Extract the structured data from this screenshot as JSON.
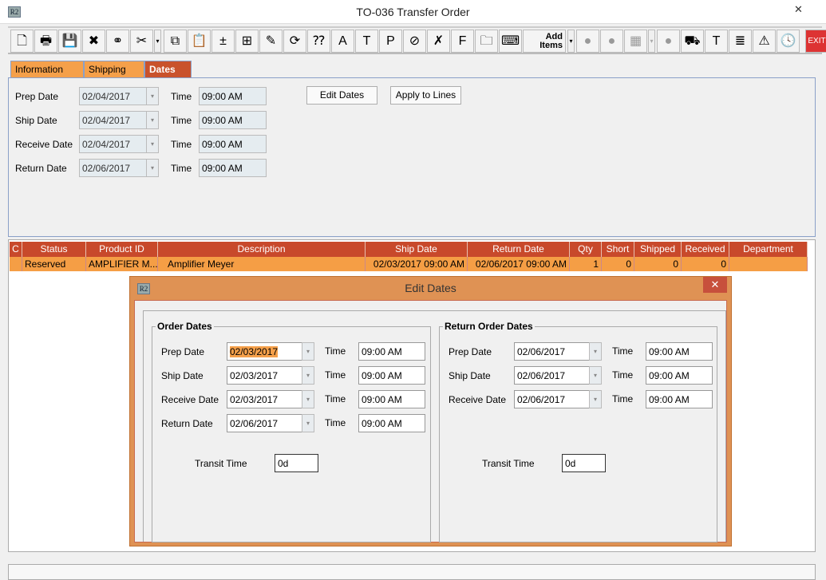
{
  "window": {
    "title": "TO-036 Transfer Order",
    "app_icon": "R2",
    "close": "✕"
  },
  "toolbar": {
    "items": [
      {
        "icon": "new-document-icon",
        "glyph": "🗋"
      },
      {
        "icon": "print-icon",
        "glyph": "🖶"
      },
      {
        "icon": "save-icon",
        "glyph": "💾"
      },
      {
        "icon": "delete-icon",
        "glyph": "✖"
      },
      {
        "icon": "binoculars-icon",
        "glyph": "⚭"
      },
      {
        "icon": "cut-icon",
        "glyph": "✂"
      },
      {
        "icon": "copy-icon",
        "glyph": "⧉"
      },
      {
        "icon": "paste-icon",
        "glyph": "📋"
      },
      {
        "icon": "add-remove-icon",
        "glyph": "±"
      },
      {
        "icon": "add-line-icon",
        "glyph": "⊞"
      },
      {
        "icon": "edit-notes-icon",
        "glyph": "✎"
      },
      {
        "icon": "refresh-icon",
        "glyph": "⟳"
      },
      {
        "icon": "availability-icon",
        "glyph": "⁇"
      },
      {
        "icon": "asset-icon",
        "glyph": "A"
      },
      {
        "icon": "tag-icon",
        "glyph": "T"
      },
      {
        "icon": "misc-po-icon",
        "glyph": "P"
      },
      {
        "icon": "no-icon",
        "glyph": "⊘"
      },
      {
        "icon": "remove-document-icon",
        "glyph": "✗"
      },
      {
        "icon": "file-icon",
        "glyph": "F"
      },
      {
        "icon": "folder-icon",
        "glyph": "🗀"
      },
      {
        "icon": "key-icon",
        "glyph": "⌨"
      },
      {
        "icon": "disabled-1-icon",
        "glyph": "●"
      },
      {
        "icon": "disabled-2-icon",
        "glyph": "●"
      },
      {
        "icon": "disabled-3-icon",
        "glyph": "▦"
      },
      {
        "icon": "disabled-4-icon",
        "glyph": "●"
      },
      {
        "icon": "truck-icon",
        "glyph": "⛟"
      },
      {
        "icon": "transfer-icon",
        "glyph": "T"
      },
      {
        "icon": "document-icon",
        "glyph": "≣"
      },
      {
        "icon": "warning-icon",
        "glyph": "⚠"
      },
      {
        "icon": "history-icon",
        "glyph": "🕓"
      },
      {
        "icon": "exit-icon",
        "glyph": "EXIT"
      }
    ],
    "add_items": "Add Items",
    "dropdown": "▾"
  },
  "tabs": [
    {
      "label": "Information"
    },
    {
      "label": "Shipping"
    },
    {
      "label": "Dates",
      "active": true
    }
  ],
  "dates": {
    "time_label": "Time",
    "rows": [
      {
        "label": "Prep Date",
        "date": "02/04/2017",
        "time": "09:00 AM"
      },
      {
        "label": "Ship Date",
        "date": "02/04/2017",
        "time": "09:00 AM"
      },
      {
        "label": "Receive Date",
        "date": "02/04/2017",
        "time": "09:00 AM"
      },
      {
        "label": "Return Date",
        "date": "02/06/2017",
        "time": "09:00 AM"
      }
    ],
    "edit_dates": "Edit Dates",
    "apply_to_lines": "Apply to Lines"
  },
  "table": {
    "columns": [
      "C",
      "Status",
      "Product ID",
      "Description",
      "Ship Date",
      "Return Date",
      "Qty",
      "Short",
      "Shipped",
      "Received",
      "Department"
    ],
    "rows": [
      [
        "",
        "Reserved",
        "AMPLIFIER M...",
        "Amplifier Meyer",
        "02/03/2017 09:00 AM",
        "02/06/2017 09:00 AM",
        "1",
        "0",
        "0",
        "0",
        ""
      ]
    ]
  },
  "dialog": {
    "title": "Edit Dates",
    "close": "✕",
    "order": {
      "title": "Order Dates",
      "rows": [
        {
          "label": "Prep Date",
          "date": "02/03/2017",
          "time": "09:00 AM"
        },
        {
          "label": "Ship Date",
          "date": "02/03/2017",
          "time": "09:00 AM"
        },
        {
          "label": "Receive Date",
          "date": "02/03/2017",
          "time": "09:00 AM"
        },
        {
          "label": "Return Date",
          "date": "02/06/2017",
          "time": "09:00 AM"
        }
      ],
      "transit_label": "Transit Time",
      "transit": "0d"
    },
    "return": {
      "title": "Return Order Dates",
      "rows": [
        {
          "label": "Prep Date",
          "date": "02/06/2017",
          "time": "09:00 AM"
        },
        {
          "label": "Ship Date",
          "date": "02/06/2017",
          "time": "09:00 AM"
        },
        {
          "label": "Receive Date",
          "date": "02/06/2017",
          "time": "09:00 AM"
        }
      ],
      "transit_label": "Transit Time",
      "transit": "0d"
    }
  },
  "colors": {
    "header": "#c8492b",
    "row": "#f59e45",
    "tab": "#f5a04a",
    "dialog_frame": "#df9254"
  }
}
